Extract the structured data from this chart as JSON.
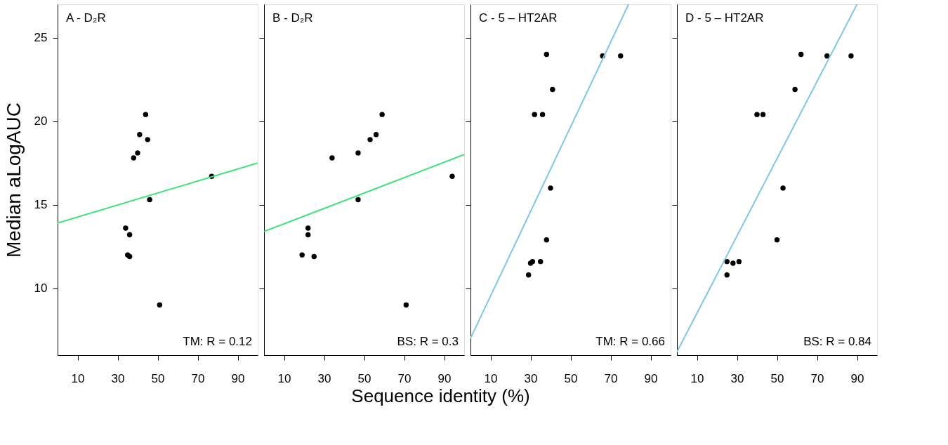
{
  "chart_data": [
    {
      "type": "scatter",
      "title": "A - D₂R",
      "xlabel": "Sequence identity (%)",
      "ylabel": "Median  aLogAUC",
      "xlim": [
        0,
        100
      ],
      "ylim": [
        6,
        27
      ],
      "xticks": [
        10,
        30,
        50,
        70,
        90
      ],
      "yticks": [
        10,
        15,
        20,
        25
      ],
      "grid": false,
      "marker": "circle",
      "annotations": [
        "TM: R = 0.12"
      ],
      "series": [
        {
          "color": "#000000",
          "x": [
            44,
            41,
            45,
            40,
            38,
            77,
            46,
            34,
            36,
            35,
            36,
            51
          ],
          "values": [
            20.4,
            19.2,
            18.9,
            18.1,
            17.8,
            16.7,
            15.3,
            13.6,
            13.2,
            12.0,
            11.9,
            9.0
          ]
        },
        {
          "type": "line",
          "marker": "none",
          "line_style": "solid",
          "color": "#3de27a",
          "x": [
            0,
            100
          ],
          "values": [
            13.9,
            17.5
          ]
        }
      ]
    },
    {
      "type": "scatter",
      "title": "B - D₂R",
      "xlim": [
        0,
        100
      ],
      "ylim": [
        6,
        27
      ],
      "xticks": [
        10,
        30,
        50,
        70,
        90
      ],
      "yticks": [
        10,
        15,
        20,
        25
      ],
      "grid": false,
      "marker": "circle",
      "tick_labels": "x",
      "annotations": [
        "BS: R = 0.3"
      ],
      "series": [
        {
          "color": "#000000",
          "x": [
            19,
            22,
            22,
            25,
            34,
            47,
            47,
            53,
            56,
            59,
            71,
            94
          ],
          "values": [
            12.0,
            13.6,
            13.2,
            11.9,
            17.8,
            18.1,
            15.3,
            18.9,
            19.2,
            20.4,
            9.0,
            16.7
          ]
        },
        {
          "type": "line",
          "marker": "none",
          "line_style": "solid",
          "color": "#3de27a",
          "x": [
            0,
            100
          ],
          "values": [
            13.4,
            18.0
          ]
        }
      ]
    },
    {
      "type": "scatter",
      "title": "C - 5 – HT2AR",
      "xlim": [
        0,
        100
      ],
      "ylim": [
        6,
        27
      ],
      "xticks": [
        10,
        30,
        50,
        70,
        90
      ],
      "yticks": [
        10,
        15,
        20,
        25
      ],
      "grid": false,
      "marker": "circle",
      "tick_labels": "x",
      "annotations": [
        "TM: R = 0.66"
      ],
      "series": [
        {
          "color": "#000000",
          "x": [
            38,
            66,
            75,
            41,
            32,
            36,
            40,
            38,
            31,
            30,
            35,
            29
          ],
          "values": [
            24.0,
            23.9,
            23.9,
            21.9,
            20.4,
            20.4,
            16.0,
            12.9,
            11.6,
            11.5,
            11.6,
            10.8
          ]
        },
        {
          "type": "line",
          "marker": "none",
          "line_style": "solid",
          "color": "#7ec8e3",
          "x": [
            0,
            79
          ],
          "values": [
            7.0,
            27.0
          ]
        }
      ]
    },
    {
      "type": "scatter",
      "title": "D - 5 – HT2AR",
      "xlim": [
        0,
        100
      ],
      "ylim": [
        6,
        27
      ],
      "xticks": [
        10,
        30,
        50,
        70,
        90
      ],
      "yticks": [
        10,
        15,
        20,
        25
      ],
      "grid": false,
      "marker": "circle",
      "tick_labels": "x",
      "annotations": [
        "BS: R = 0.84"
      ],
      "series": [
        {
          "color": "#000000",
          "x": [
            62,
            75,
            87,
            59,
            40,
            43,
            53,
            50,
            25,
            28,
            31,
            25
          ],
          "values": [
            24.0,
            23.9,
            23.9,
            21.9,
            20.4,
            20.4,
            16.0,
            12.9,
            11.6,
            11.5,
            11.6,
            10.8
          ]
        },
        {
          "type": "line",
          "marker": "none",
          "line_style": "solid",
          "color": "#7ec8e3",
          "x": [
            0,
            90
          ],
          "values": [
            6.2,
            27.0
          ]
        }
      ]
    }
  ]
}
